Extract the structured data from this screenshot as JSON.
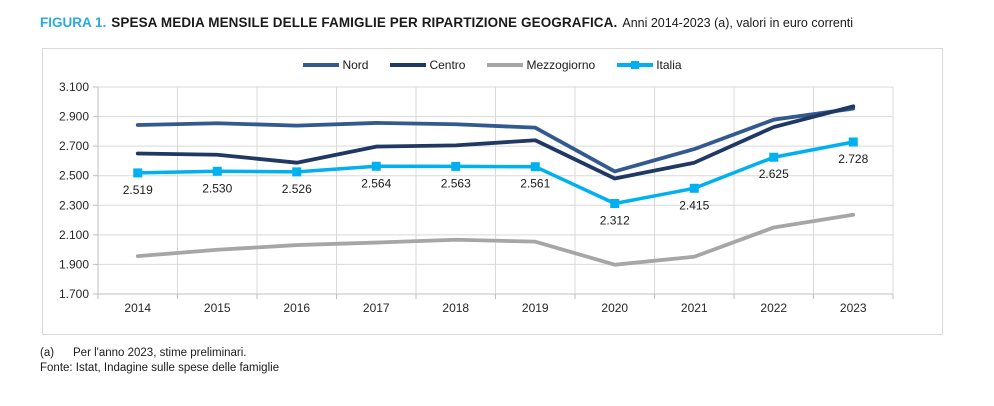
{
  "figure": {
    "label": "FIGURA 1.",
    "title": "SPESA MEDIA MENSILE DELLE FAMIGLIE PER RIPARTIZIONE GEOGRAFICA.",
    "subtitle": "Anni 2014-2023 (a), valori in euro correnti"
  },
  "footnotes": [
    {
      "marker": "(a)",
      "text": "Per l'anno 2023, stime preliminari."
    },
    {
      "marker": "",
      "text": "Fonte: Istat, Indagine sulle spese delle famiglie"
    }
  ],
  "colors": {
    "figure_label": "#29ABE2",
    "title_text": "#1A1A1A",
    "grid": "#D9D9D9",
    "axis": "#BFBFBF",
    "tick_text": "#262626",
    "data_label_text": "#1A1A1A",
    "panel_border": "#D9D9D9",
    "nord": "#335A8F",
    "centro": "#1F3864",
    "mezzogiorno": "#A6A6A6",
    "italia": "#00B0F0"
  },
  "chart_data": {
    "type": "line",
    "title": "SPESA MEDIA MENSILE DELLE FAMIGLIE PER RIPARTIZIONE GEOGRAFICA. Anni 2014-2023 (a), valori in euro correnti",
    "xlabel": "",
    "ylabel": "",
    "grid": true,
    "legend_position": "top-center",
    "categories": [
      "2014",
      "2015",
      "2016",
      "2017",
      "2018",
      "2019",
      "2020",
      "2021",
      "2022",
      "2023"
    ],
    "ylim": [
      1700,
      3100
    ],
    "yticks": [
      {
        "value": 3100,
        "label": "3.100"
      },
      {
        "value": 2900,
        "label": "2.900"
      },
      {
        "value": 2700,
        "label": "2.700"
      },
      {
        "value": 2500,
        "label": "2.500"
      },
      {
        "value": 2300,
        "label": "2.300"
      },
      {
        "value": 2100,
        "label": "2.100"
      },
      {
        "value": 1900,
        "label": "1.900"
      },
      {
        "value": 1700,
        "label": "1.700"
      }
    ],
    "series": [
      {
        "name": "Nord",
        "color": "#335A8F",
        "marker": false,
        "values": [
          2843,
          2855,
          2839,
          2857,
          2848,
          2825,
          2529,
          2680,
          2879,
          2954
        ]
      },
      {
        "name": "Centro",
        "color": "#1F3864",
        "marker": false,
        "values": [
          2650,
          2642,
          2588,
          2697,
          2705,
          2740,
          2481,
          2588,
          2829,
          2969
        ]
      },
      {
        "name": "Mezzogiorno",
        "color": "#A6A6A6",
        "marker": false,
        "values": [
          1956,
          1999,
          2031,
          2048,
          2067,
          2054,
          1898,
          1952,
          2150,
          2236
        ]
      },
      {
        "name": "Italia",
        "color": "#00B0F0",
        "marker": true,
        "values": [
          2519,
          2530,
          2526,
          2564,
          2563,
          2561,
          2312,
          2415,
          2625,
          2728
        ],
        "value_labels": [
          "2.519",
          "2.530",
          "2.526",
          "2.564",
          "2.563",
          "2.561",
          "2.312",
          "2.415",
          "2.625",
          "2.728"
        ]
      }
    ]
  }
}
